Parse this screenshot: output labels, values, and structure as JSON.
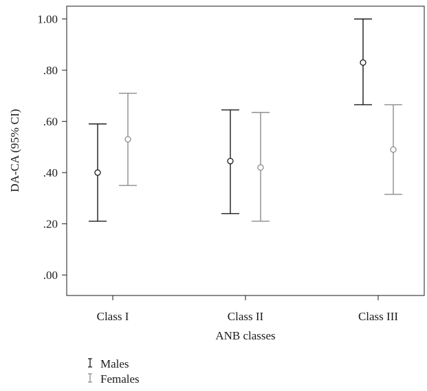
{
  "chart_data": {
    "type": "errorbar",
    "categories": [
      "Class I",
      "Class II",
      "Class III"
    ],
    "xlabel": "ANB classes",
    "ylabel": "DA-CA (95% CI)",
    "ylim": [
      -0.08,
      1.05
    ],
    "yticks": [
      0.0,
      0.2,
      0.4,
      0.6,
      0.8,
      1.0
    ],
    "ytick_labels": [
      ".00",
      ".20",
      ".40",
      ".60",
      ".80",
      "1.00"
    ],
    "grid": false,
    "legend_placement": "bottom-left",
    "series": [
      {
        "name": "Males",
        "color": "#1a1a1a",
        "marker": "open-circle",
        "means": [
          0.4,
          0.445,
          0.83
        ],
        "lower": [
          0.21,
          0.24,
          0.665
        ],
        "upper": [
          0.59,
          0.645,
          1.0
        ]
      },
      {
        "name": "Females",
        "color": "#8c8c8c",
        "marker": "open-circle",
        "means": [
          0.53,
          0.42,
          0.49
        ],
        "lower": [
          0.35,
          0.21,
          0.315
        ],
        "upper": [
          0.71,
          0.635,
          0.665
        ]
      }
    ]
  }
}
